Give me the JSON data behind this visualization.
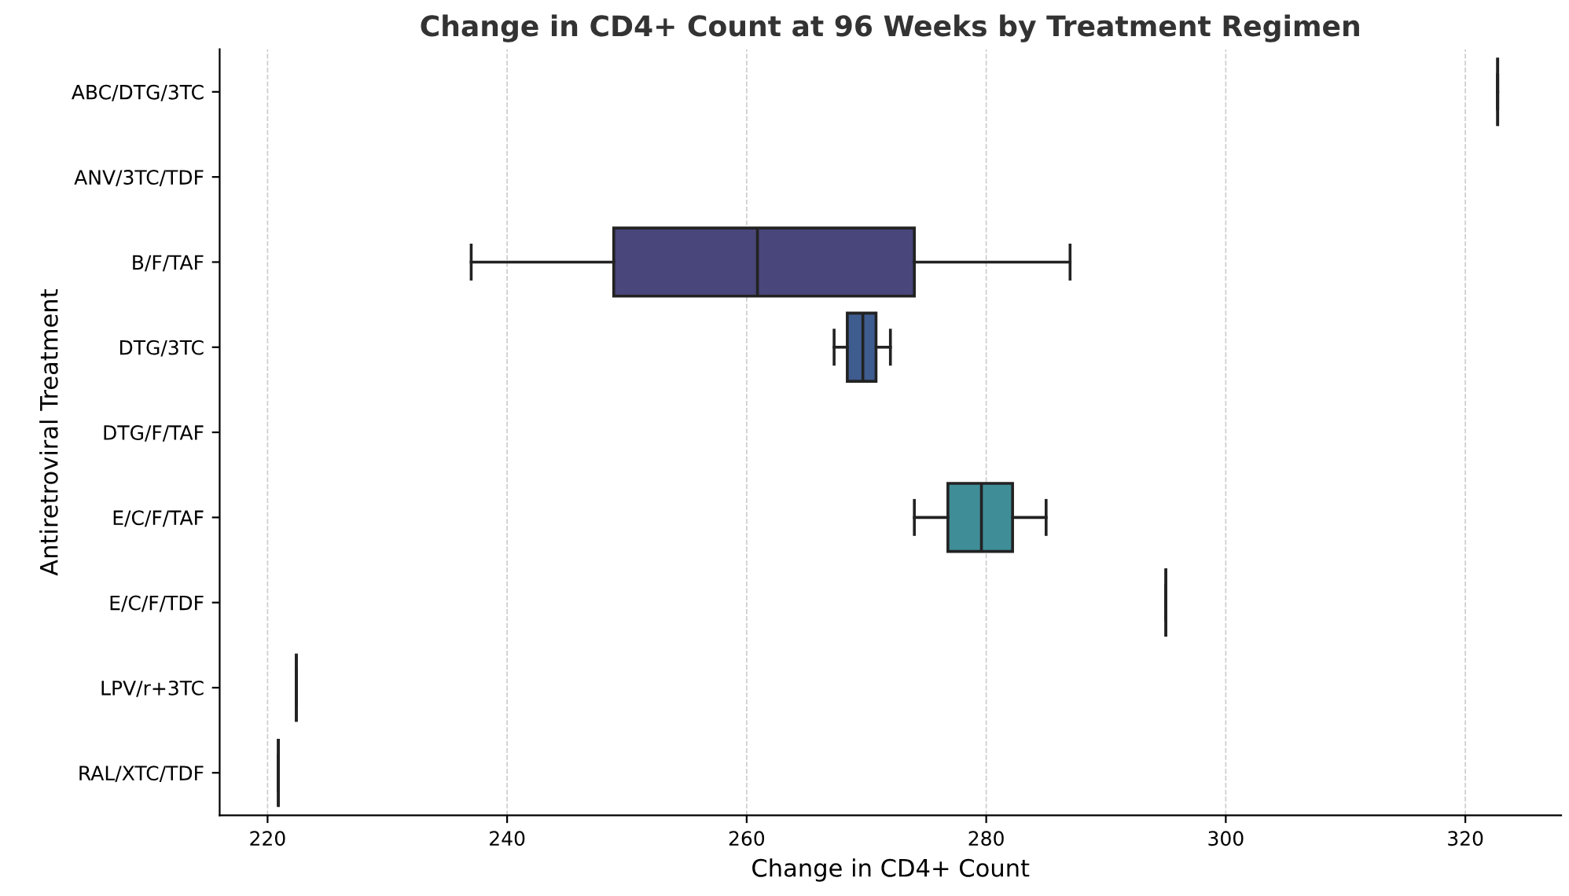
{
  "chart_data": {
    "type": "box",
    "orientation": "horizontal",
    "title": "Change in CD4+ Count at 96 Weeks by Treatment Regimen",
    "xlabel": "Change in CD4+ Count",
    "ylabel": "Antiretroviral Treatment",
    "categories": [
      "ABC/DTG/3TC",
      "ANV/3TC/TDF",
      "B/F/TAF",
      "DTG/3TC",
      "DTG/F/TAF",
      "E/C/F/TAF",
      "E/C/F/TDF",
      "LPV/r+3TC",
      "RAL/XTC/TDF"
    ],
    "boxes": [
      {
        "low": 322.7,
        "q1": 322.7,
        "median": 322.7,
        "q3": 322.7,
        "high": 322.7
      },
      null,
      {
        "low": 237.0,
        "q1": 248.9,
        "median": 260.9,
        "q3": 274.0,
        "high": 287.0
      },
      {
        "low": 267.3,
        "q1": 268.4,
        "median": 269.7,
        "q3": 270.8,
        "high": 272.0
      },
      null,
      {
        "low": 274.0,
        "q1": 276.8,
        "median": 279.6,
        "q3": 282.2,
        "high": 285.0
      },
      {
        "low": 295.0,
        "q1": 295.0,
        "median": 295.0,
        "q3": 295.0,
        "high": 295.0
      },
      {
        "low": 222.4,
        "q1": 222.4,
        "median": 222.4,
        "q3": 222.4,
        "high": 222.4
      },
      {
        "low": 220.9,
        "q1": 220.9,
        "median": 220.9,
        "q3": 220.9,
        "high": 220.9
      }
    ],
    "colors": [
      null,
      null,
      "#48467a",
      "#3e5c8e",
      null,
      "#3f8d97",
      null,
      null,
      null
    ],
    "xlim": [
      216,
      328
    ],
    "xticks": [
      220,
      240,
      260,
      280,
      300,
      320
    ],
    "grid": "x"
  }
}
